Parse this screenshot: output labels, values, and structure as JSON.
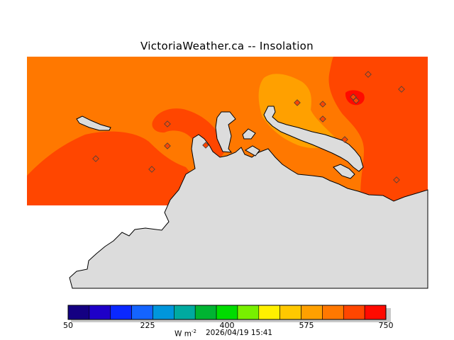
{
  "title": "VictoriaWeather.ca -- Insolation",
  "colorbar": {
    "colors": [
      "#140082",
      "#1e00c8",
      "#0a28ff",
      "#1464ff",
      "#0096dc",
      "#00aaa0",
      "#00b432",
      "#00dc00",
      "#78f000",
      "#fff000",
      "#ffc800",
      "#ffa000",
      "#ff7800",
      "#ff4600",
      "#ff0a00"
    ],
    "tick_labels": [
      "50",
      "225",
      "400",
      "575",
      "750"
    ],
    "units": "W m",
    "units_superscript": "-2",
    "timestamp": "2026/04/19 15:41"
  },
  "map": {
    "colors": {
      "land": "#dcdcdc",
      "band_625_675": "#ff7800",
      "band_675_725": "#ff4600",
      "band_575_625": "#ffa000",
      "band_725_775": "#ff0a00",
      "station_marker": "#ff4600"
    },
    "station_count": 14
  }
}
